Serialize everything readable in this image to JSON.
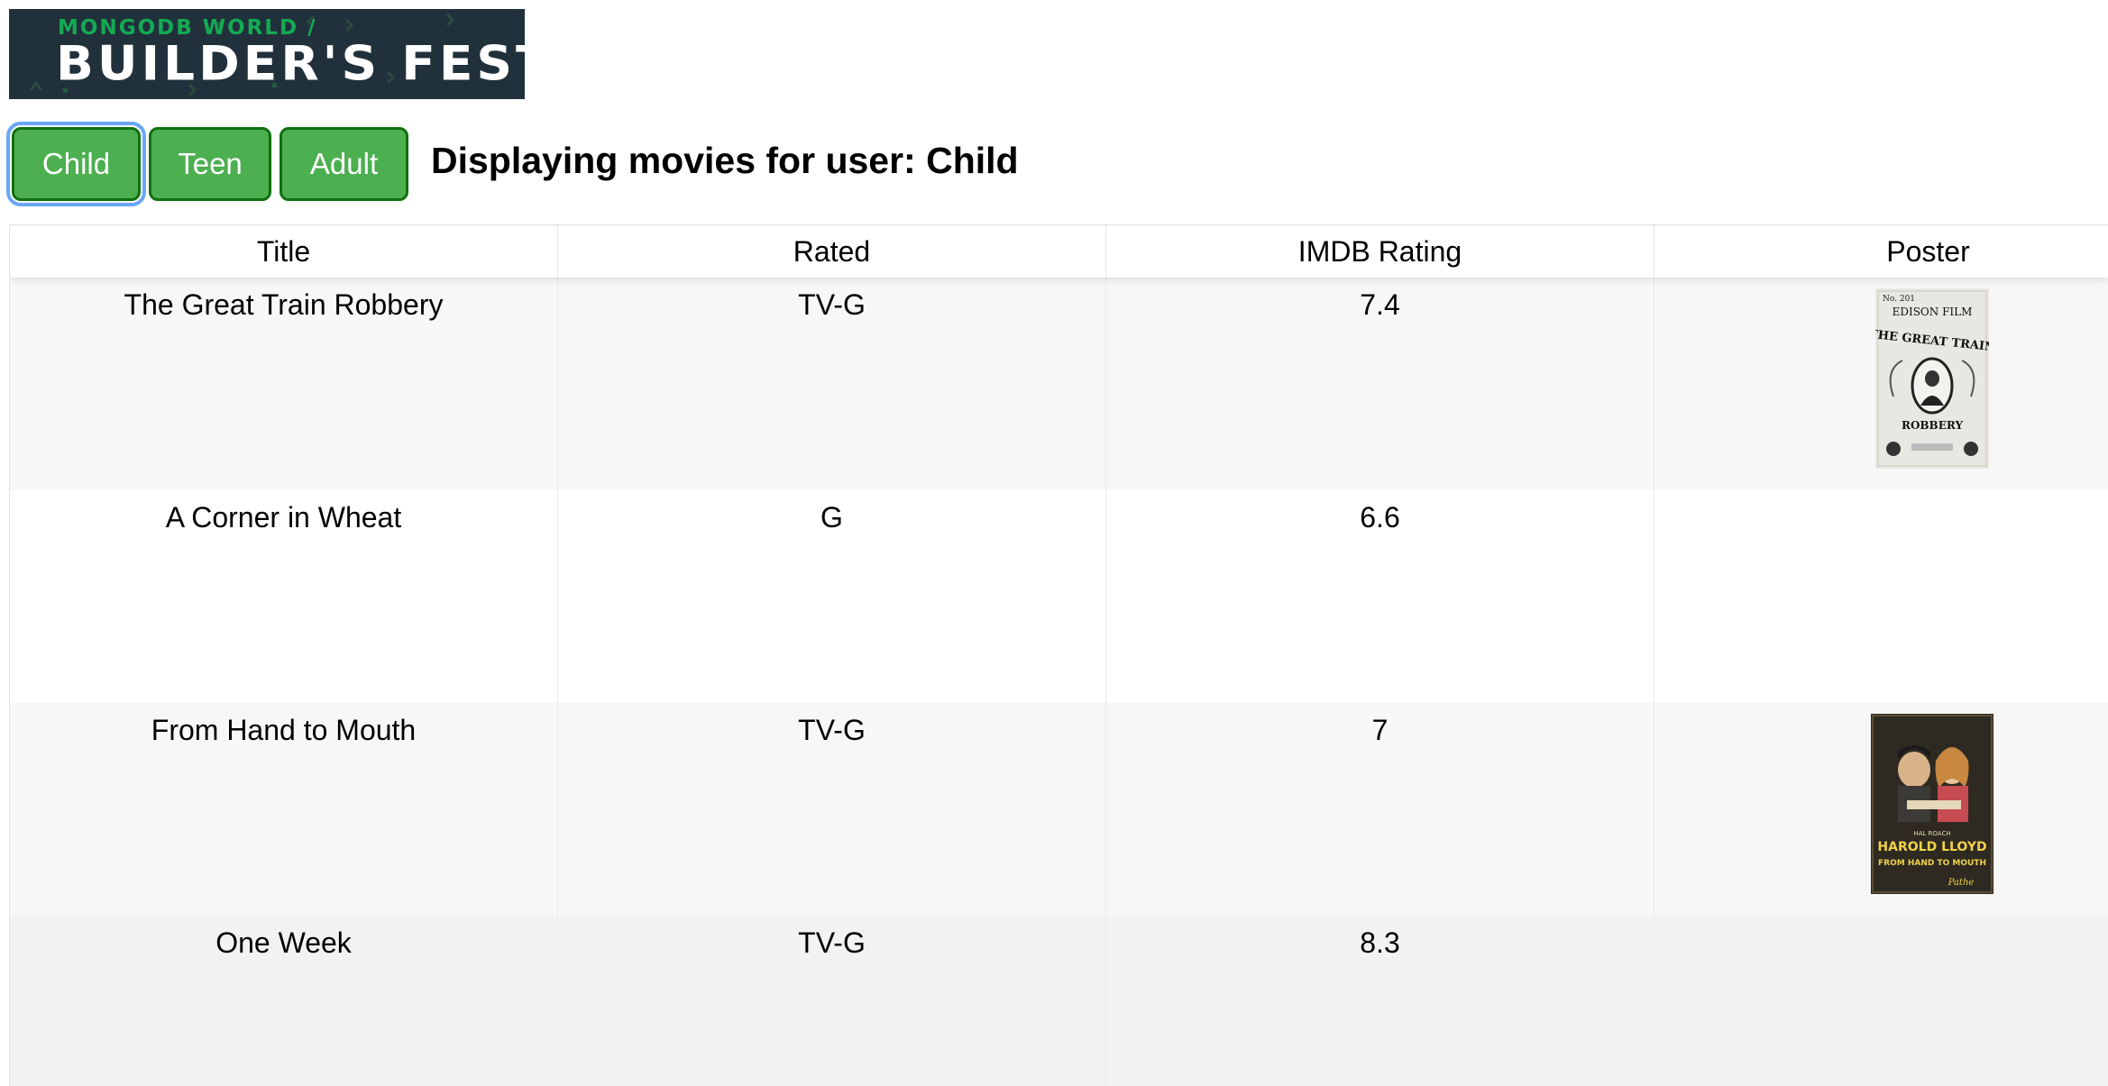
{
  "banner": {
    "top_text": "MONGODB WORLD /",
    "main_text": "BUILDER'S FEST"
  },
  "user_buttons": [
    {
      "label": "Child"
    },
    {
      "label": "Teen"
    },
    {
      "label": "Adult"
    }
  ],
  "status": {
    "text": "Displaying movies for user: Child"
  },
  "table": {
    "headers": [
      "Title",
      "Rated",
      "IMDB Rating",
      "Poster"
    ],
    "rows": [
      {
        "title": "The Great Train Robbery",
        "rated": "TV-G",
        "imdb": "7.4",
        "poster": {
          "line1": "No. 201",
          "line2": "EDISON FILM",
          "line3": "THE GREAT TRAIN",
          "line4": "ROBBERY"
        }
      },
      {
        "title": "A Corner in Wheat",
        "rated": "G",
        "imdb": "6.6"
      },
      {
        "title": "From Hand to Mouth",
        "rated": "TV-G",
        "imdb": "7",
        "poster": {
          "line1": "HAL ROACH",
          "line2": "HAROLD LLOYD",
          "line3": "FROM HAND TO MOUTH",
          "line4": "Pathe"
        }
      },
      {
        "title": "One Week",
        "rated": "TV-G",
        "imdb": "8.3"
      }
    ]
  },
  "colors": {
    "button_bg": "#4caf50",
    "button_border": "#107010",
    "focus_ring": "#6aa6f5",
    "banner_bg": "#21313c",
    "banner_accent": "#13aa52"
  }
}
